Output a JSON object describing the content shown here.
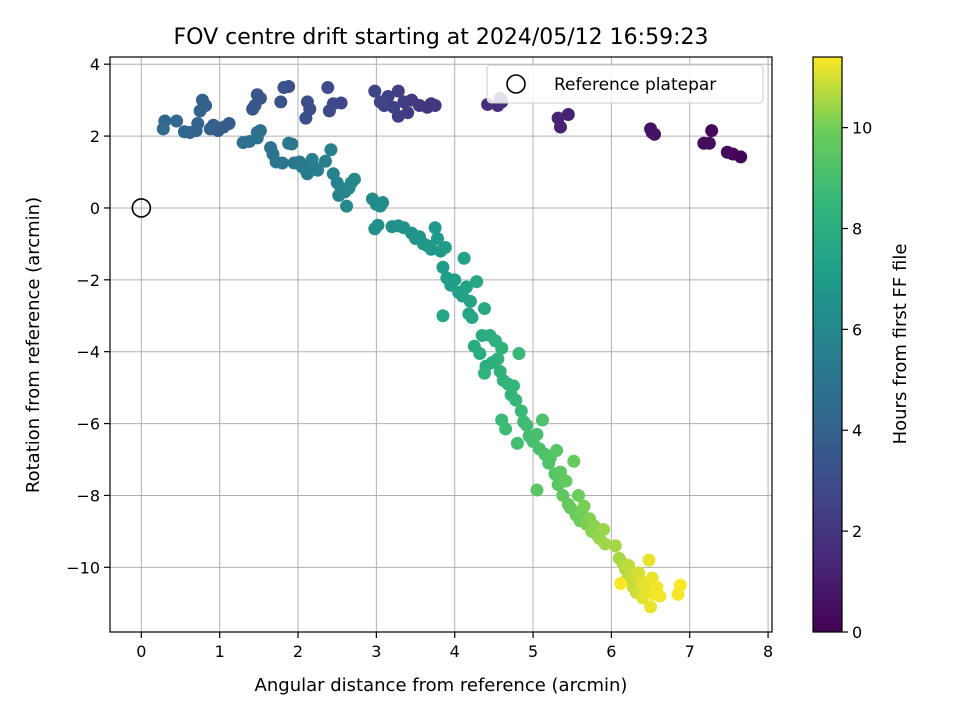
{
  "chart_data": {
    "type": "scatter",
    "title": "FOV centre drift starting at 2024/05/12 16:59:23",
    "xlabel": "Angular distance from reference (arcmin)",
    "ylabel": "Rotation from reference (arcmin)",
    "xlim": [
      -0.4,
      8.05
    ],
    "ylim": [
      -11.8,
      4.2
    ],
    "xticks": [
      0,
      1,
      2,
      3,
      4,
      5,
      6,
      7,
      8
    ],
    "xtick_labels": [
      "0",
      "1",
      "2",
      "3",
      "4",
      "5",
      "6",
      "7",
      "8"
    ],
    "yticks": [
      4,
      2,
      0,
      -2,
      -4,
      -6,
      -8,
      -10
    ],
    "ytick_labels": [
      "4",
      "2",
      "0",
      "−2",
      "−4",
      "−6",
      "−8",
      "−10"
    ],
    "grid": true,
    "legend": {
      "placement": "top-right",
      "entries": [
        "Reference platepar"
      ]
    },
    "reference_point": {
      "x": 0,
      "y": 0
    },
    "colorbar": {
      "label": "Hours from first FF file",
      "colormap": "viridis",
      "range": [
        0,
        11.4
      ],
      "ticks": [
        0,
        2,
        4,
        6,
        8,
        10
      ],
      "tick_labels": [
        "0",
        "2",
        "4",
        "6",
        "8",
        "10"
      ]
    },
    "series": [
      {
        "points": [
          [
            7.65,
            1.42,
            0.15
          ],
          [
            7.55,
            1.5,
            0.2
          ],
          [
            7.48,
            1.55,
            0.25
          ],
          [
            7.28,
            2.15,
            0.3
          ],
          [
            7.25,
            1.8,
            0.35
          ],
          [
            7.18,
            1.8,
            0.4
          ],
          [
            6.55,
            2.05,
            0.6
          ],
          [
            6.5,
            2.2,
            0.65
          ],
          [
            6.52,
            2.1,
            0.7
          ],
          [
            5.45,
            2.6,
            1.2
          ],
          [
            5.35,
            2.25,
            1.25
          ],
          [
            5.32,
            2.5,
            1.3
          ],
          [
            4.6,
            2.95,
            1.6
          ],
          [
            4.58,
            3.05,
            1.65
          ],
          [
            4.42,
            2.88,
            1.7
          ],
          [
            4.55,
            2.85,
            1.75
          ],
          [
            3.75,
            2.85,
            2.0
          ],
          [
            3.7,
            2.9,
            2.05
          ],
          [
            3.65,
            2.8,
            2.1
          ],
          [
            3.55,
            2.85,
            2.15
          ],
          [
            3.45,
            3.0,
            2.2
          ],
          [
            3.4,
            2.65,
            2.25
          ],
          [
            3.35,
            2.95,
            2.3
          ],
          [
            3.28,
            2.55,
            2.35
          ],
          [
            3.28,
            3.25,
            2.4
          ],
          [
            3.22,
            2.8,
            2.45
          ],
          [
            3.15,
            3.1,
            2.5
          ],
          [
            3.1,
            2.85,
            2.55
          ],
          [
            3.05,
            2.95,
            2.6
          ],
          [
            2.98,
            3.25,
            2.65
          ],
          [
            2.55,
            2.92,
            2.8
          ],
          [
            2.45,
            2.9,
            2.85
          ],
          [
            2.4,
            2.7,
            2.9
          ],
          [
            2.38,
            3.35,
            2.95
          ],
          [
            2.15,
            2.75,
            3.05
          ],
          [
            2.12,
            2.95,
            3.1
          ],
          [
            2.1,
            2.5,
            3.15
          ],
          [
            1.88,
            3.38,
            3.2
          ],
          [
            1.82,
            3.35,
            3.25
          ],
          [
            1.78,
            2.95,
            3.3
          ],
          [
            1.52,
            3.05,
            3.4
          ],
          [
            1.48,
            3.15,
            3.45
          ],
          [
            1.45,
            2.85,
            3.5
          ],
          [
            1.42,
            2.75,
            3.55
          ],
          [
            1.12,
            2.35,
            3.7
          ],
          [
            1.05,
            2.25,
            3.75
          ],
          [
            0.98,
            2.15,
            3.8
          ],
          [
            0.92,
            2.3,
            3.85
          ],
          [
            0.88,
            2.2,
            3.9
          ],
          [
            0.82,
            2.85,
            3.95
          ],
          [
            0.78,
            3.0,
            4.0
          ],
          [
            0.75,
            2.7,
            4.05
          ],
          [
            0.72,
            2.35,
            4.1
          ],
          [
            0.7,
            2.15,
            4.15
          ],
          [
            0.62,
            2.1,
            4.2
          ],
          [
            0.55,
            2.12,
            4.25
          ],
          [
            0.45,
            2.42,
            4.3
          ],
          [
            0.3,
            2.42,
            4.35
          ],
          [
            0.28,
            2.2,
            4.4
          ],
          [
            1.3,
            1.82,
            4.6
          ],
          [
            1.38,
            1.85,
            4.65
          ],
          [
            1.48,
            2.1,
            4.7
          ],
          [
            1.52,
            2.15,
            4.75
          ],
          [
            1.48,
            1.95,
            4.8
          ],
          [
            1.65,
            1.68,
            4.85
          ],
          [
            1.68,
            1.5,
            4.9
          ],
          [
            1.72,
            1.28,
            4.95
          ],
          [
            1.8,
            1.25,
            5.0
          ],
          [
            1.88,
            1.8,
            5.05
          ],
          [
            1.92,
            1.78,
            5.1
          ],
          [
            1.95,
            1.25,
            5.15
          ],
          [
            2.02,
            1.28,
            5.2
          ],
          [
            2.05,
            1.15,
            5.25
          ],
          [
            2.1,
            1.05,
            5.3
          ],
          [
            2.12,
            0.95,
            5.35
          ],
          [
            2.18,
            1.35,
            5.4
          ],
          [
            2.2,
            1.15,
            5.45
          ],
          [
            2.25,
            1.05,
            5.5
          ],
          [
            2.35,
            1.3,
            5.55
          ],
          [
            2.42,
            1.62,
            5.6
          ],
          [
            2.45,
            0.95,
            5.65
          ],
          [
            2.5,
            0.7,
            5.7
          ],
          [
            2.52,
            0.35,
            5.75
          ],
          [
            2.55,
            0.55,
            5.8
          ],
          [
            2.6,
            0.45,
            5.85
          ],
          [
            2.65,
            0.55,
            5.9
          ],
          [
            2.68,
            0.7,
            5.95
          ],
          [
            2.62,
            0.05,
            6.0
          ],
          [
            2.72,
            0.8,
            6.05
          ],
          [
            2.95,
            0.25,
            6.1
          ],
          [
            3.0,
            0.1,
            6.15
          ],
          [
            3.05,
            0.05,
            6.2
          ],
          [
            3.08,
            0.15,
            6.25
          ],
          [
            2.98,
            -0.58,
            6.3
          ],
          [
            3.02,
            -0.48,
            6.35
          ],
          [
            3.2,
            -0.52,
            6.4
          ],
          [
            3.28,
            -0.5,
            6.45
          ],
          [
            3.35,
            -0.55,
            6.5
          ],
          [
            3.45,
            -0.7,
            6.55
          ],
          [
            3.5,
            -0.85,
            6.6
          ],
          [
            3.55,
            -0.8,
            6.65
          ],
          [
            3.6,
            -1.0,
            6.7
          ],
          [
            3.65,
            -1.05,
            6.75
          ],
          [
            3.7,
            -1.15,
            6.8
          ],
          [
            3.75,
            -0.55,
            6.85
          ],
          [
            3.78,
            -0.85,
            6.9
          ],
          [
            3.82,
            -1.2,
            6.95
          ],
          [
            3.88,
            -1.1,
            7.0
          ],
          [
            3.85,
            -1.65,
            7.05
          ],
          [
            3.9,
            -1.95,
            7.1
          ],
          [
            3.95,
            -2.15,
            7.15
          ],
          [
            4.0,
            -2.0,
            7.2
          ],
          [
            4.05,
            -2.35,
            7.25
          ],
          [
            4.1,
            -2.45,
            7.3
          ],
          [
            4.12,
            -1.4,
            7.35
          ],
          [
            4.15,
            -2.2,
            7.4
          ],
          [
            4.2,
            -2.6,
            7.45
          ],
          [
            4.18,
            -2.95,
            7.5
          ],
          [
            3.85,
            -3.0,
            7.55
          ],
          [
            4.22,
            -3.05,
            7.6
          ],
          [
            4.28,
            -2.05,
            7.65
          ],
          [
            4.38,
            -2.8,
            7.7
          ],
          [
            4.25,
            -3.85,
            7.8
          ],
          [
            4.32,
            -4.05,
            7.85
          ],
          [
            4.35,
            -3.55,
            7.9
          ],
          [
            4.4,
            -4.4,
            7.95
          ],
          [
            4.45,
            -3.55,
            8.0
          ],
          [
            4.48,
            -4.3,
            8.05
          ],
          [
            4.52,
            -3.7,
            8.1
          ],
          [
            4.55,
            -4.2,
            8.15
          ],
          [
            4.58,
            -4.55,
            8.2
          ],
          [
            4.6,
            -3.9,
            8.25
          ],
          [
            4.38,
            -4.6,
            8.3
          ],
          [
            4.62,
            -4.8,
            8.35
          ],
          [
            4.68,
            -4.9,
            8.4
          ],
          [
            4.72,
            -5.2,
            8.45
          ],
          [
            4.75,
            -4.95,
            8.5
          ],
          [
            4.78,
            -5.35,
            8.55
          ],
          [
            4.82,
            -4.05,
            8.6
          ],
          [
            4.85,
            -5.65,
            8.65
          ],
          [
            4.6,
            -5.9,
            8.7
          ],
          [
            4.65,
            -6.15,
            8.75
          ],
          [
            4.88,
            -5.95,
            8.8
          ],
          [
            4.92,
            -6.05,
            8.85
          ],
          [
            4.95,
            -6.35,
            8.9
          ],
          [
            4.8,
            -6.55,
            8.95
          ],
          [
            5.0,
            -6.5,
            9.0
          ],
          [
            5.05,
            -6.3,
            9.05
          ],
          [
            5.08,
            -6.7,
            9.1
          ],
          [
            5.12,
            -5.9,
            9.15
          ],
          [
            5.15,
            -6.85,
            9.2
          ],
          [
            5.2,
            -7.1,
            9.25
          ],
          [
            5.22,
            -6.95,
            9.3
          ],
          [
            5.28,
            -7.4,
            9.35
          ],
          [
            5.3,
            -6.75,
            9.4
          ],
          [
            5.32,
            -7.7,
            9.45
          ],
          [
            5.05,
            -7.85,
            9.5
          ],
          [
            5.35,
            -7.35,
            9.55
          ],
          [
            5.38,
            -8.0,
            9.6
          ],
          [
            5.42,
            -7.6,
            9.65
          ],
          [
            5.45,
            -8.25,
            9.7
          ],
          [
            5.48,
            -8.35,
            9.75
          ],
          [
            5.52,
            -7.05,
            9.8
          ],
          [
            5.55,
            -8.55,
            9.85
          ],
          [
            5.58,
            -8.0,
            9.9
          ],
          [
            5.6,
            -8.7,
            9.95
          ],
          [
            5.62,
            -8.45,
            10.0
          ],
          [
            5.65,
            -8.3,
            10.05
          ],
          [
            5.68,
            -8.8,
            10.1
          ],
          [
            5.72,
            -8.65,
            10.15
          ],
          [
            5.75,
            -9.0,
            10.2
          ],
          [
            5.78,
            -8.85,
            10.25
          ],
          [
            5.82,
            -9.1,
            10.3
          ],
          [
            5.85,
            -9.2,
            10.35
          ],
          [
            5.9,
            -8.95,
            10.4
          ],
          [
            5.92,
            -9.35,
            10.45
          ],
          [
            6.05,
            -9.4,
            10.5
          ],
          [
            6.1,
            -9.75,
            10.55
          ],
          [
            6.15,
            -9.9,
            10.6
          ],
          [
            6.18,
            -10.05,
            10.65
          ],
          [
            6.2,
            -10.35,
            10.7
          ],
          [
            6.22,
            -9.95,
            10.75
          ],
          [
            6.25,
            -10.2,
            10.8
          ],
          [
            6.28,
            -10.55,
            10.85
          ],
          [
            6.3,
            -10.25,
            10.9
          ],
          [
            6.32,
            -10.7,
            10.95
          ],
          [
            6.35,
            -10.15,
            11.0
          ],
          [
            6.38,
            -10.4,
            11.05
          ],
          [
            6.4,
            -10.85,
            11.1
          ],
          [
            6.42,
            -10.5,
            11.12
          ],
          [
            6.45,
            -10.65,
            11.15
          ],
          [
            6.48,
            -9.8,
            11.18
          ],
          [
            6.5,
            -11.1,
            11.2
          ],
          [
            6.52,
            -10.3,
            11.22
          ],
          [
            6.55,
            -10.75,
            11.25
          ],
          [
            6.58,
            -10.55,
            11.28
          ],
          [
            6.62,
            -10.8,
            11.3
          ],
          [
            6.85,
            -10.75,
            11.33
          ],
          [
            6.88,
            -10.5,
            11.36
          ],
          [
            6.12,
            -10.45,
            11.38
          ]
        ]
      }
    ]
  }
}
